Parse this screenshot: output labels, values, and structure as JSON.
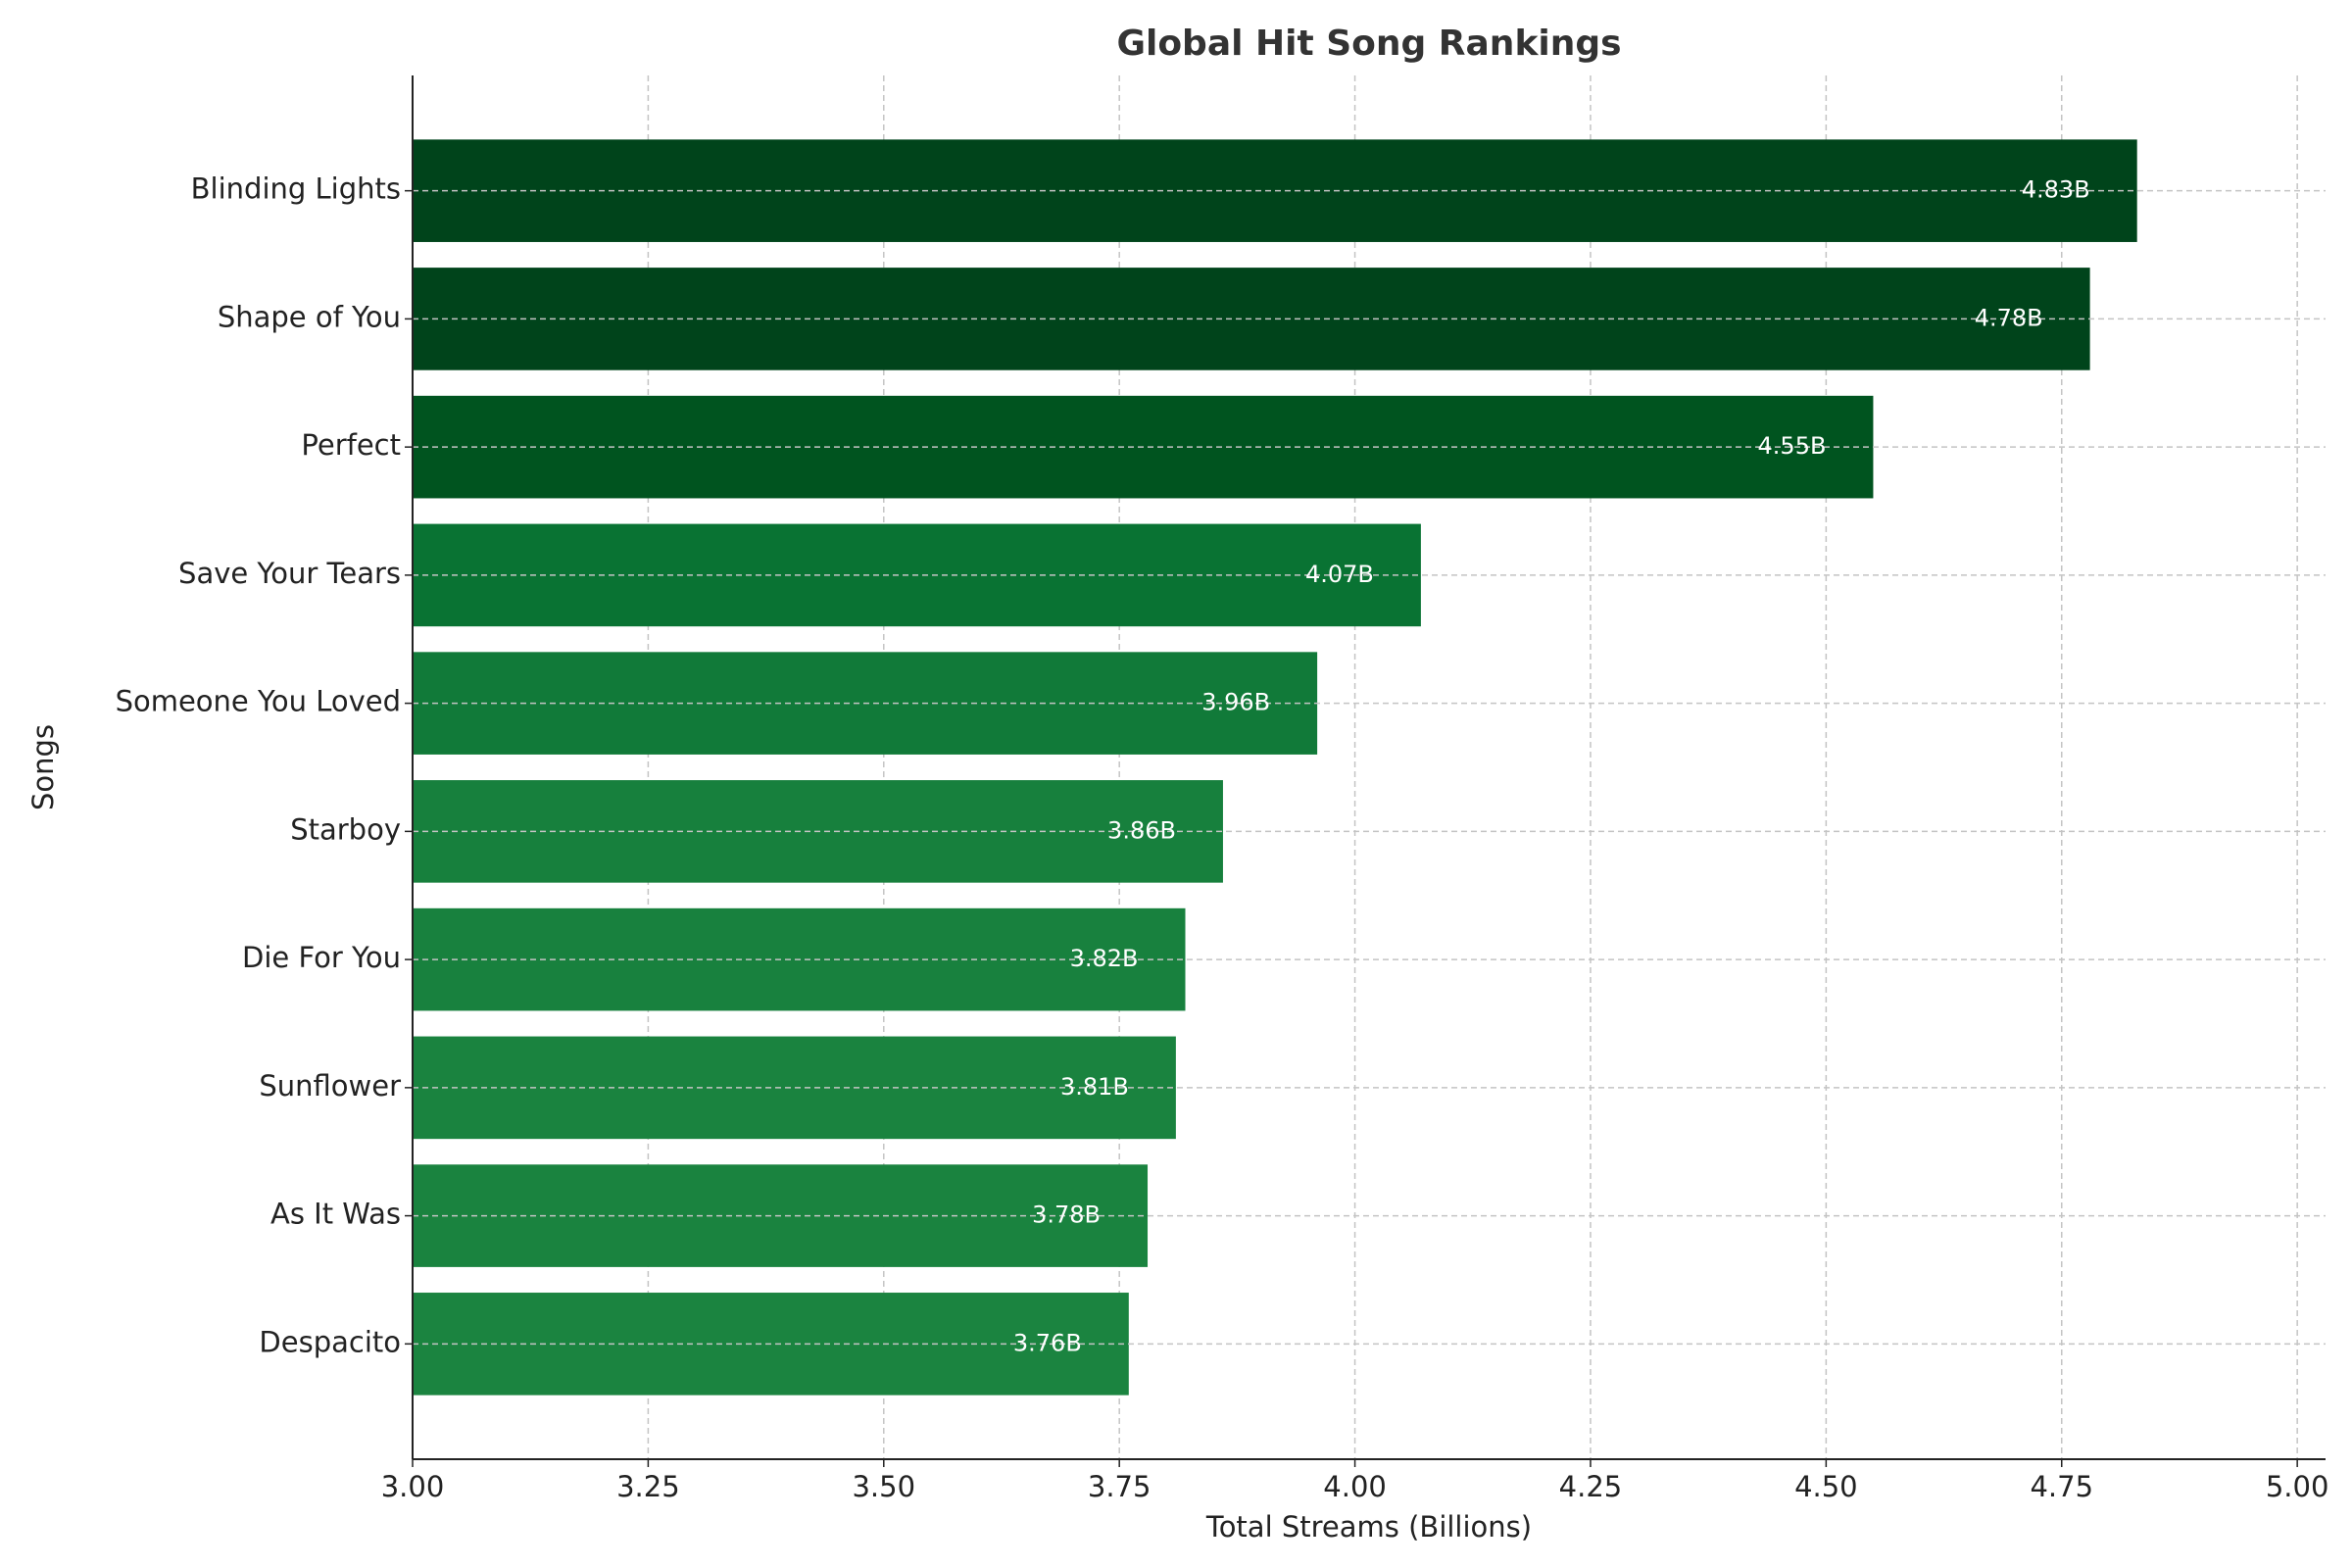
{
  "chart_data": {
    "type": "bar",
    "orientation": "horizontal",
    "title": "Global Hit Song Rankings",
    "xlabel": "Total Streams (Billions)",
    "ylabel": "Songs",
    "categories": [
      "Blinding Lights",
      "Shape of You",
      "Perfect",
      "Save Your Tears",
      "Someone You Loved",
      "Starboy",
      "Die For You",
      "Sunflower",
      "As It Was",
      "Despacito"
    ],
    "values": [
      4.83,
      4.78,
      4.55,
      4.07,
      3.96,
      3.86,
      3.82,
      3.81,
      3.78,
      3.76
    ],
    "value_labels": [
      "4.83B",
      "4.78B",
      "4.55B",
      "4.07B",
      "3.96B",
      "3.86B",
      "3.82B",
      "3.81B",
      "3.78B",
      "3.76B"
    ],
    "colors": [
      "#00441b",
      "#00441b",
      "#00541f",
      "#097333",
      "#117a39",
      "#17803d",
      "#18813e",
      "#1a833f",
      "#1a833f",
      "#1b8440"
    ],
    "xlim": [
      3.0,
      5.03
    ],
    "xticks": [
      {
        "value": 3.0,
        "label": "3.00"
      },
      {
        "value": 3.25,
        "label": "3.25"
      },
      {
        "value": 3.5,
        "label": "3.50"
      },
      {
        "value": 3.75,
        "label": "3.75"
      },
      {
        "value": 4.0,
        "label": "4.00"
      },
      {
        "value": 4.25,
        "label": "4.25"
      },
      {
        "value": 4.5,
        "label": "4.50"
      },
      {
        "value": 4.75,
        "label": "4.75"
      },
      {
        "value": 5.0,
        "label": "5.00"
      }
    ],
    "grid": true
  }
}
